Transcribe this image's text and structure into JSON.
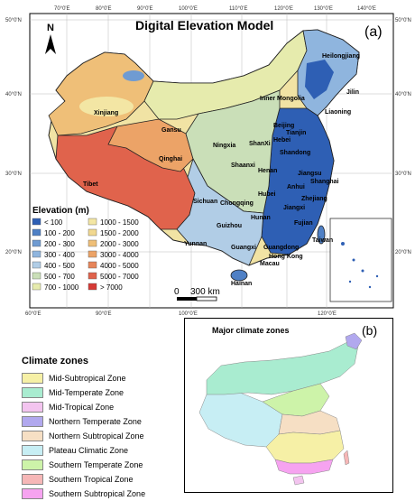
{
  "dem": {
    "title": "Digital Elevation Model",
    "panel_label": "(a)",
    "lon_ticks": [
      "70°0'E",
      "80°0'E",
      "90°0'E",
      "100°0'E",
      "110°0'E",
      "120°0'E",
      "130°0'E",
      "140°0'E"
    ],
    "bottom_lon_ticks": [
      "60°0'E",
      "90°0'E",
      "100°0'E",
      "120°0'E"
    ],
    "lat_ticks_left": [
      "50°0'N",
      "40°0'N",
      "30°0'N",
      "20°0'N"
    ],
    "lat_ticks_right": [
      "50°0'N",
      "40°0'N",
      "30°0'N",
      "20°0'N"
    ],
    "north_arrow_label": "N",
    "scale_bar": {
      "zero": "0",
      "value": "300 km"
    },
    "legend": {
      "title": "Elevation (m)",
      "items": [
        {
          "label": "< 100",
          "color": "#2e5fb4"
        },
        {
          "label": "1000 - 1500",
          "color": "#f3e6a4"
        },
        {
          "label": "100 - 200",
          "color": "#4f80c5"
        },
        {
          "label": "1500 - 2000",
          "color": "#f1d890"
        },
        {
          "label": "200 - 300",
          "color": "#6f9bd2"
        },
        {
          "label": "2000 - 3000",
          "color": "#efbf78"
        },
        {
          "label": "300 - 400",
          "color": "#8fb5de"
        },
        {
          "label": "3000 - 4000",
          "color": "#eca367"
        },
        {
          "label": "400 - 500",
          "color": "#b1cde6"
        },
        {
          "label": "4000 - 5000",
          "color": "#e7855a"
        },
        {
          "label": "500 - 700",
          "color": "#cadfb8"
        },
        {
          "label": "5000 - 7000",
          "color": "#e0634c"
        },
        {
          "label": "700 - 1000",
          "color": "#e6ebad"
        },
        {
          "label": "> 7000",
          "color": "#d63a35"
        }
      ]
    },
    "provinces": [
      "Heilongjiang",
      "Jilin",
      "Liaoning",
      "Inner Mongolia",
      "Xinjiang",
      "Gansu",
      "Ningxia",
      "Beijing",
      "Tianjin",
      "Hebei",
      "ShanXi",
      "Shandong",
      "Qinghai",
      "Shaanxi",
      "Henan",
      "Jiangsu",
      "Tibet",
      "Anhui",
      "Shanghai",
      "Hubei",
      "Sichuan",
      "Chongqing",
      "Zhejiang",
      "Jiangxi",
      "Hunan",
      "Guizhou",
      "Fujian",
      "Taiwan",
      "Yunnan",
      "Guangxi",
      "Guangdong",
      "Hong Kong",
      "Macau",
      "Hainan"
    ]
  },
  "climate": {
    "legend_title": "Climate zones",
    "zones": [
      {
        "label": "Mid-Subtropical Zone",
        "color": "#f6f0a6"
      },
      {
        "label": "Mid-Temperate Zone",
        "color": "#a9ecd0"
      },
      {
        "label": "Mid-Tropical Zone",
        "color": "#f3c4ef"
      },
      {
        "label": "Northern Temperate Zone",
        "color": "#b1a8ee"
      },
      {
        "label": "Northern Subtropical Zone",
        "color": "#f6dfc4"
      },
      {
        "label": "Plateau Climatic Zone",
        "color": "#c7eef4"
      },
      {
        "label": "Southern Temperate Zone",
        "color": "#cdf3a9"
      },
      {
        "label": "Southern Tropical Zone",
        "color": "#f6b7b7"
      },
      {
        "label": "Southern Subtropical Zone",
        "color": "#f6a3f0"
      }
    ],
    "map_title": "Major climate zones",
    "panel_label": "(b)"
  }
}
